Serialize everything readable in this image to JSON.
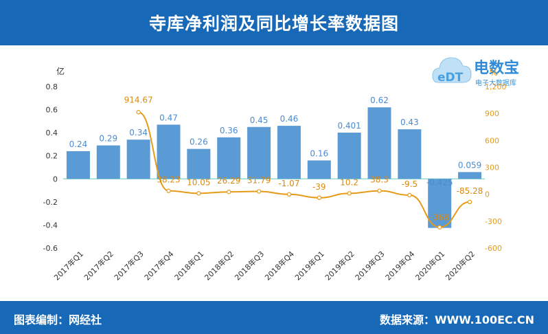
{
  "header": {
    "title": "寺库净利润及同比增长率数据图"
  },
  "footer": {
    "left": "图表编制：网经社",
    "right": "数据来源：WWW.100EC.CN"
  },
  "logo": {
    "text": "电数宝",
    "subtext": "电子大数据库",
    "badge": "eDT"
  },
  "colors": {
    "header_bg": "#1769b8",
    "bar": "#5b9bd5",
    "line": "#e69a17",
    "bar_label": "#4a8ad0",
    "line_label": "#d98a0f"
  },
  "chart_data": {
    "type": "bar",
    "categories": [
      "2017年Q1",
      "2017年Q2",
      "2017年Q3",
      "2017年Q4",
      "2018年Q1",
      "2018年Q2",
      "2018年Q3",
      "2018年Q4",
      "2019年Q1",
      "2019年Q2",
      "2019年Q3",
      "2019年Q4",
      "2020年Q1",
      "2020年Q2"
    ],
    "y_unit_left": "亿",
    "y_unit_right": "%",
    "ylim_left": [
      -0.6,
      0.8
    ],
    "ylim_right": [
      -600,
      1200
    ],
    "yticks_left": [
      "0.8",
      "0.6",
      "0.4",
      "0.2",
      "0",
      "-0.2",
      "-0.4",
      "-0.6"
    ],
    "yticks_right": [
      "1,200",
      "900",
      "600",
      "300",
      "0",
      "-300",
      "-600"
    ],
    "series": [
      {
        "kind": "bar",
        "axis": "left",
        "values": [
          0.24,
          0.29,
          0.34,
          0.47,
          0.26,
          0.36,
          0.45,
          0.46,
          0.16,
          0.401,
          0.62,
          0.43,
          -0.425,
          0.059
        ],
        "labels": [
          "0.24",
          "0.29",
          "0.34",
          "0.47",
          "0.26",
          "0.36",
          "0.45",
          "0.46",
          "0.16",
          "0.401",
          "0.62",
          "0.43",
          "-0.425",
          "0.059"
        ]
      },
      {
        "kind": "line",
        "axis": "right",
        "values": [
          null,
          null,
          914.67,
          38.23,
          10.05,
          26.29,
          31.79,
          -1.07,
          -39,
          10.2,
          38.3,
          -9.5,
          -368,
          -85.28
        ],
        "labels": [
          "",
          "",
          "914.67",
          "38.23",
          "10.05",
          "26.29",
          "31.79",
          "-1.07",
          "-39",
          "10.2",
          "38.3",
          "-9.5",
          "-368",
          "-85.28"
        ]
      }
    ],
    "grid": false,
    "legend": "none"
  }
}
